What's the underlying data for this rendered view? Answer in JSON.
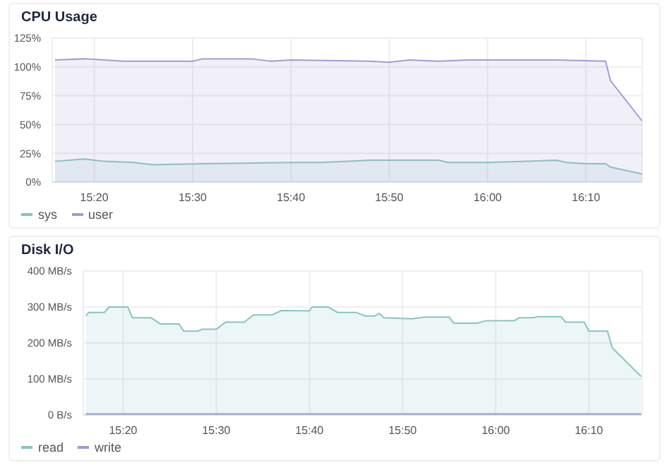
{
  "chart_data": [
    {
      "type": "area",
      "title": "CPU Usage",
      "legend": "bottom left",
      "grid": true,
      "xlim": [
        15.262,
        16.262
      ],
      "xticks": [
        {
          "value": 15.3333,
          "label": "15:20"
        },
        {
          "value": 15.5,
          "label": "15:30"
        },
        {
          "value": 15.6667,
          "label": "15:40"
        },
        {
          "value": 15.8333,
          "label": "15:50"
        },
        {
          "value": 16.0,
          "label": "16:00"
        },
        {
          "value": 16.1667,
          "label": "16:10"
        }
      ],
      "ylim": [
        0,
        125
      ],
      "yticks": [
        {
          "value": 0,
          "label": "0%"
        },
        {
          "value": 25,
          "label": "25%"
        },
        {
          "value": 50,
          "label": "50%"
        },
        {
          "value": 75,
          "label": "75%"
        },
        {
          "value": 100,
          "label": "100%"
        },
        {
          "value": 125,
          "label": "125%"
        }
      ],
      "series": [
        {
          "name": "sys",
          "color": "#86c5c0",
          "x": [
            15.2667,
            15.3167,
            15.35,
            15.4,
            15.4333,
            15.5167,
            15.6667,
            15.7167,
            15.8,
            15.9167,
            15.9333,
            16.0,
            16.0667,
            16.1167,
            16.1333,
            16.1667,
            16.2,
            16.2083,
            16.262
          ],
          "values": [
            18,
            20,
            18,
            17,
            15,
            16,
            17,
            17,
            19,
            19,
            17,
            17,
            18,
            19,
            17,
            16,
            16,
            13,
            7
          ]
        },
        {
          "name": "user",
          "color": "#a09cd8",
          "x": [
            15.2667,
            15.3167,
            15.35,
            15.3833,
            15.5,
            15.5167,
            15.6,
            15.6333,
            15.6667,
            15.8,
            15.8333,
            15.8667,
            15.9167,
            15.9667,
            16.0667,
            16.1167,
            16.2,
            16.2083,
            16.262
          ],
          "values": [
            106,
            107,
            106,
            105,
            105,
            107,
            107,
            105,
            106,
            105,
            104,
            106,
            105,
            106,
            106,
            106,
            105,
            88,
            53
          ]
        }
      ]
    },
    {
      "type": "area",
      "title": "Disk I/O",
      "legend": "bottom left",
      "grid": true,
      "xlim": [
        15.262,
        16.262
      ],
      "xticks": [
        {
          "value": 15.3333,
          "label": "15:20"
        },
        {
          "value": 15.5,
          "label": "15:30"
        },
        {
          "value": 15.6667,
          "label": "15:40"
        },
        {
          "value": 15.8333,
          "label": "15:50"
        },
        {
          "value": 16.0,
          "label": "16:00"
        },
        {
          "value": 16.1667,
          "label": "16:10"
        }
      ],
      "ylim": [
        0,
        400
      ],
      "yticks": [
        {
          "value": 0,
          "label": "0 B/s"
        },
        {
          "value": 100,
          "label": "100 MB/s"
        },
        {
          "value": 200,
          "label": "200 MB/s"
        },
        {
          "value": 300,
          "label": "300 MB/s"
        },
        {
          "value": 400,
          "label": "400 MB/s"
        }
      ],
      "series": [
        {
          "name": "read",
          "color": "#86c5c0",
          "x": [
            15.2667,
            15.2717,
            15.3,
            15.3083,
            15.3417,
            15.35,
            15.3833,
            15.4,
            15.4333,
            15.4417,
            15.4667,
            15.475,
            15.5,
            15.5167,
            15.55,
            15.5667,
            15.6,
            15.6167,
            15.6667,
            15.6717,
            15.7,
            15.7167,
            15.75,
            15.7667,
            15.7833,
            15.7917,
            15.8,
            15.85,
            15.875,
            15.9167,
            15.925,
            15.9667,
            15.9833,
            16.0333,
            16.0417,
            16.0667,
            16.075,
            16.1167,
            16.125,
            16.1583,
            16.1667,
            16.2,
            16.2083,
            16.26
          ],
          "values": [
            275,
            285,
            285,
            300,
            300,
            270,
            270,
            253,
            253,
            233,
            233,
            238,
            238,
            258,
            258,
            278,
            278,
            290,
            289,
            300,
            300,
            285,
            285,
            275,
            275,
            282,
            270,
            267,
            272,
            272,
            255,
            255,
            262,
            262,
            270,
            270,
            273,
            273,
            258,
            258,
            233,
            233,
            187,
            107
          ]
        },
        {
          "name": "write",
          "type": "line",
          "color": "#a09cd8",
          "x": [
            15.2667,
            16.26
          ],
          "values": [
            0,
            0
          ]
        }
      ]
    }
  ]
}
